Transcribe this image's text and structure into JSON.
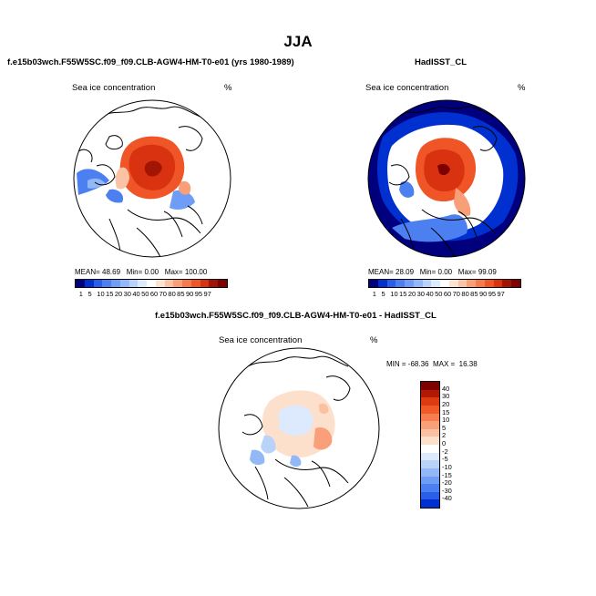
{
  "title": "JJA",
  "panels": [
    {
      "title": "f.e15b03wch.F55W5SC.f09_f09.CLB-AGW4-HM-T0-e01 (yrs 1980-1989)",
      "map_label": "Sea ice concentration",
      "unit": "%",
      "mean_label": "MEAN=",
      "mean": "48.69",
      "min_label": "Min=",
      "min": "0.00",
      "max_label": "Max=",
      "max": "100.00"
    },
    {
      "title": "HadISST_CL",
      "map_label": "Sea ice concentration",
      "unit": "%",
      "mean_label": "MEAN=",
      "mean": "28.09",
      "min_label": "Min=",
      "min": "0.00",
      "max_label": "Max=",
      "max": "99.09"
    }
  ],
  "diff_panel": {
    "title": "f.e15b03wch.F55W5SC.f09_f09.CLB-AGW4-HM-T0-e01 - HadISST_CL",
    "map_label": "Sea ice concentration",
    "unit": "%",
    "min_label": "MIN =",
    "min": "-68.36",
    "max_label": "MAX =",
    "max": "16.38"
  },
  "colorbar_seq": {
    "labels": [
      "1",
      "5",
      "10",
      "15",
      "20",
      "30",
      "40",
      "50",
      "60",
      "70",
      "80",
      "85",
      "90",
      "95",
      "97"
    ],
    "colors": [
      "#00007f",
      "#0030d0",
      "#2a5de8",
      "#4c7ff0",
      "#6f9cf4",
      "#92b8f7",
      "#b8d2fa",
      "#dde9fc",
      "#ffffff",
      "#fde3d1",
      "#fbc3a5",
      "#f99f78",
      "#f67a4e",
      "#f05528",
      "#d93210",
      "#a21504",
      "#7f0000"
    ]
  },
  "colorbar_diff": {
    "labels": [
      "40",
      "30",
      "20",
      "15",
      "10",
      "5",
      "2",
      "0",
      "-2",
      "-5",
      "-10",
      "-15",
      "-20",
      "-30",
      "-40"
    ],
    "colors": [
      "#7f0000",
      "#b01a04",
      "#dc3a10",
      "#f05a28",
      "#f67d50",
      "#f99f7a",
      "#fbc0a2",
      "#fde0cc",
      "#ffffff",
      "#dde9fc",
      "#b8d2fa",
      "#92b8f7",
      "#6f9cf4",
      "#4c7ff0",
      "#2a5de8",
      "#0030d0"
    ]
  },
  "colors": {
    "land_outline": "#000000",
    "open_ocean": "#ffffff",
    "dense_ice_model": "#d6461a",
    "dense_ice_obs": "#d24616",
    "obs_ocean_fill": "#000099"
  }
}
